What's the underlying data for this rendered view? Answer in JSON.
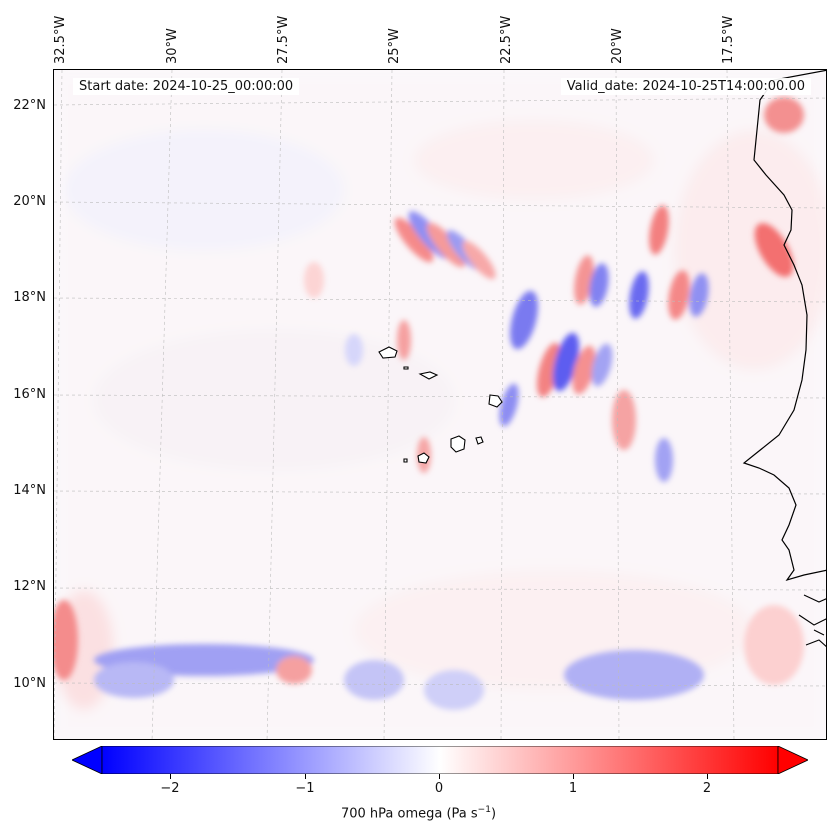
{
  "header": {
    "start_date": "Start date: 2024-10-25_00:00:00",
    "valid_date": "Valid_date: 2024-10-25T14:00:00.00"
  },
  "longitude_labels": [
    "32.5°W",
    "30°W",
    "27.5°W",
    "25°W",
    "22.5°W",
    "20°W",
    "17.5°W"
  ],
  "latitude_labels": [
    "22°N",
    "20°N",
    "18°N",
    "16°N",
    "14°N",
    "12°N",
    "10°N"
  ],
  "colorbar": {
    "label": "700 hPa omega (Pa s",
    "label_sup": "−1",
    "label_close": ")",
    "ticks": [
      "−2",
      "−1",
      "0",
      "1",
      "2"
    ],
    "range": [
      -2.7,
      2.7
    ],
    "cmap": "bwr",
    "extend": "both"
  },
  "map": {
    "variable": "700 hPa omega",
    "extent": {
      "lon": [
        -32.5,
        -15.5
      ],
      "lat": [
        8.8,
        22.8
      ]
    },
    "colors": {
      "negative": "#0000ff",
      "neutral": "#ffffff",
      "positive": "#ff0000",
      "coastline": "#000000",
      "grid": "#bbbbbb"
    }
  }
}
